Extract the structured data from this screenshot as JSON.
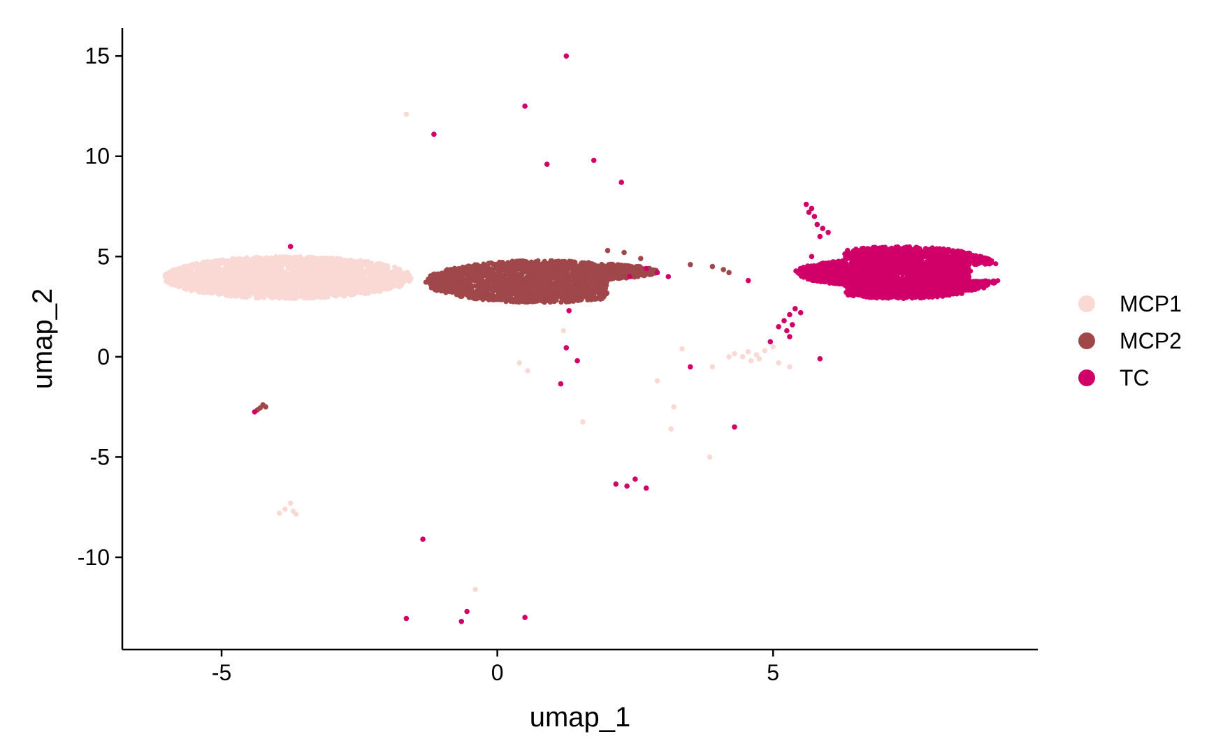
{
  "chart_data": {
    "type": "scatter",
    "title": "",
    "xlabel": "umap_1",
    "ylabel": "umap_2",
    "xlim": [
      -6.8,
      9.8
    ],
    "ylim": [
      -14.6,
      16.4
    ],
    "x_ticks": [
      -5,
      0,
      5
    ],
    "y_ticks": [
      15,
      10,
      5,
      0,
      -5,
      -10
    ],
    "x_tick_labels": [
      "-5",
      "0",
      "5"
    ],
    "y_tick_labels": [
      "15",
      "10",
      "5",
      "0",
      "-5",
      "-10"
    ],
    "grid": false,
    "legend_position": "right",
    "series": [
      {
        "name": "MCP1",
        "color": "#FAD9D5",
        "points": [
          [
            -1.65,
            12.1
          ],
          [
            -3.75,
            -7.3
          ],
          [
            -3.85,
            -7.6
          ],
          [
            -3.7,
            -7.7
          ],
          [
            -3.95,
            -7.8
          ],
          [
            -3.65,
            -7.85
          ],
          [
            -0.4,
            -11.6
          ],
          [
            1.2,
            1.3
          ],
          [
            0.4,
            -0.3
          ],
          [
            0.55,
            -0.7
          ],
          [
            1.55,
            -3.25
          ],
          [
            2.9,
            -1.2
          ],
          [
            3.15,
            -3.6
          ],
          [
            3.2,
            -2.5
          ],
          [
            3.35,
            0.4
          ],
          [
            3.9,
            -0.5
          ],
          [
            3.85,
            -5.0
          ],
          [
            4.2,
            0.0
          ],
          [
            4.3,
            0.15
          ],
          [
            4.45,
            0.0
          ],
          [
            4.6,
            -0.2
          ],
          [
            4.75,
            -0.1
          ],
          [
            4.85,
            0.3
          ],
          [
            5.0,
            0.5
          ],
          [
            5.1,
            -0.3
          ],
          [
            5.3,
            -0.5
          ],
          [
            4.55,
            0.25
          ],
          [
            4.7,
            0.1
          ]
        ],
        "cluster": {
          "cx": -3.8,
          "cy": 3.95,
          "rx": 2.25,
          "ry": 1.05,
          "count": 2400
        }
      },
      {
        "name": "MCP2",
        "color": "#A0474A",
        "points": [
          [
            -4.25,
            -2.4
          ],
          [
            -4.2,
            -2.5
          ],
          [
            -4.3,
            -2.55
          ],
          [
            -4.35,
            -2.65
          ],
          [
            2.0,
            5.3
          ],
          [
            2.3,
            5.2
          ],
          [
            2.6,
            4.9
          ],
          [
            3.5,
            4.6
          ],
          [
            3.9,
            4.5
          ],
          [
            4.1,
            4.35
          ],
          [
            4.2,
            4.2
          ]
        ],
        "cluster": {
          "cx": 0.8,
          "cy": 3.75,
          "rx": 2.1,
          "ry": 1.05,
          "count": 2200
        }
      },
      {
        "name": "TC",
        "color": "#D10068",
        "points": [
          [
            1.25,
            15.0
          ],
          [
            0.5,
            12.5
          ],
          [
            -1.15,
            11.1
          ],
          [
            0.9,
            9.6
          ],
          [
            1.75,
            9.8
          ],
          [
            2.25,
            8.7
          ],
          [
            1.25,
            0.45
          ],
          [
            1.45,
            -0.2
          ],
          [
            3.5,
            -0.5
          ],
          [
            1.15,
            -1.35
          ],
          [
            4.3,
            -3.5
          ],
          [
            2.15,
            -6.35
          ],
          [
            2.35,
            -6.45
          ],
          [
            2.5,
            -6.1
          ],
          [
            2.7,
            -6.55
          ],
          [
            -1.35,
            -9.1
          ],
          [
            -0.55,
            -12.7
          ],
          [
            -0.65,
            -13.2
          ],
          [
            0.5,
            -13.0
          ],
          [
            -1.65,
            -13.05
          ],
          [
            5.85,
            -0.1
          ],
          [
            5.3,
            1.0
          ],
          [
            4.95,
            0.75
          ],
          [
            5.7,
            5.0
          ],
          [
            4.55,
            3.8
          ],
          [
            1.3,
            2.3
          ],
          [
            -4.4,
            -2.75
          ],
          [
            -3.75,
            5.5
          ],
          [
            5.6,
            7.6
          ],
          [
            5.7,
            7.4
          ],
          [
            5.65,
            7.2
          ],
          [
            5.75,
            7.0
          ],
          [
            5.8,
            6.6
          ],
          [
            5.9,
            6.4
          ],
          [
            6.0,
            6.2
          ],
          [
            5.85,
            6.0
          ],
          [
            5.1,
            1.5
          ],
          [
            5.2,
            1.8
          ],
          [
            5.3,
            2.1
          ],
          [
            5.4,
            2.4
          ],
          [
            5.5,
            2.2
          ],
          [
            5.35,
            1.6
          ],
          [
            5.25,
            1.3
          ],
          [
            2.4,
            4.0
          ],
          [
            2.7,
            4.4
          ],
          [
            2.9,
            4.2
          ],
          [
            3.1,
            4.0
          ]
        ],
        "cluster": {
          "cx": 7.3,
          "cy": 4.2,
          "rx": 1.9,
          "ry": 1.3,
          "count": 2800
        }
      }
    ]
  }
}
